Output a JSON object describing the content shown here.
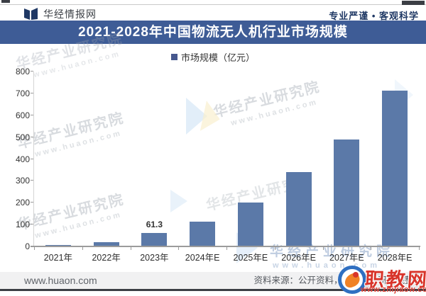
{
  "header": {
    "brand": "华经情报网",
    "tagline": "专业严谨 • 客观科学"
  },
  "title": "2021-2028年中国物流无人机行业市场规模",
  "legend": "市场规模（亿元）",
  "chart_data": {
    "type": "bar",
    "title": "2021-2028年中国物流无人机行业市场规模",
    "categories": [
      "2021年",
      "2022年",
      "2023年",
      "2024年E",
      "2025年E",
      "2026年E",
      "2027年E",
      "2028年E"
    ],
    "values": [
      8,
      20,
      61.3,
      115,
      201,
      340,
      490,
      712
    ],
    "unit": "亿元",
    "legend_entries": [
      "市场规模（亿元）"
    ],
    "ylim": [
      0,
      800
    ],
    "ytick_step": 100,
    "grid": false,
    "legend_position": "top",
    "data_labels": {
      "2023年": "61.3"
    },
    "bar_color": "#5b79a8"
  },
  "footer": {
    "site": "www.huaon.com",
    "source": "资料来源：公开资料，华经产业研究院整理"
  },
  "watermark": {
    "brand": "华经产业研究院",
    "url": "www.huaon.com"
  },
  "overlay_logo": {
    "name": "职教网",
    "url": "www.zhijiaow.com"
  },
  "colors": {
    "banner_bg": "#3e5c96",
    "bar": "#5b79a8",
    "accent_navy": "#1f3864",
    "footer_bg": "#f1f1f2",
    "overlay_red": "#d8342a"
  }
}
